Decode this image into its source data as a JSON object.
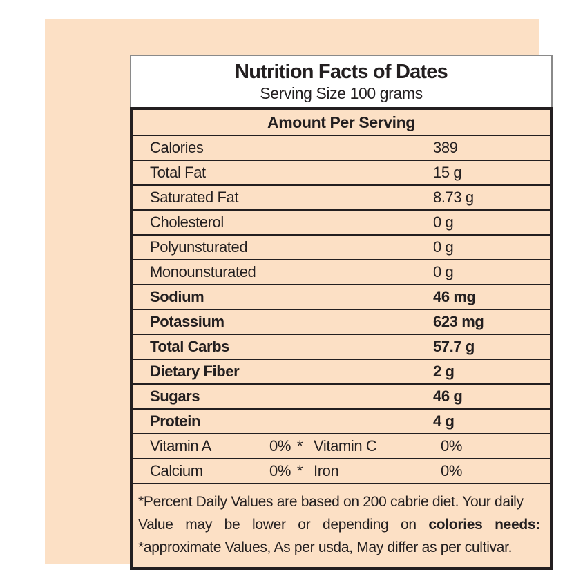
{
  "colors": {
    "panel_background": "#fce0c5",
    "ink": "#231f20",
    "header_box_background": "#ffffff",
    "header_box_border": "#8a8a8a"
  },
  "header": {
    "title": "Nutrition Facts of Dates",
    "serving_size": "Serving Size 100 grams"
  },
  "section_header": "Amount Per Serving",
  "rows": [
    {
      "label": "Calories",
      "value": "389"
    },
    {
      "label": "Total Fat",
      "value": "15 g"
    },
    {
      "label": "Saturated Fat",
      "value": "8.73 g"
    },
    {
      "label": "Cholesterol",
      "value": "0 g"
    },
    {
      "label": "Polyunsturated",
      "value": "0 g"
    },
    {
      "label": "Monounsturated",
      "value": "0 g"
    },
    {
      "label": "Sodium",
      "value": "46 mg"
    },
    {
      "label": "Potassium",
      "value": "623 mg"
    },
    {
      "label": "Total Carbs",
      "value": "57.7 g"
    },
    {
      "label": "Dietary Fiber",
      "value": "2 g"
    },
    {
      "label": "Sugars",
      "value": "46 g"
    },
    {
      "label": "Protein",
      "value": "4 g"
    }
  ],
  "micronutrients": [
    {
      "label1": "Vitamin A",
      "value1": "0%",
      "sep": "*",
      "label2": "Vitamin C",
      "value2": "0%"
    },
    {
      "label1": "Calcium",
      "value1": "0%",
      "sep": "*",
      "label2": "Iron",
      "value2": "0%"
    }
  ],
  "footnote": {
    "line1": "*Percent Daily Values are based on 200 cabrie diet.  Your daily",
    "line2_normal": "Value may be lower or depending on",
    "line2_bold": "colories needs:",
    "line3": "*approximate Values, As per usda, May differ as per cultivar."
  }
}
